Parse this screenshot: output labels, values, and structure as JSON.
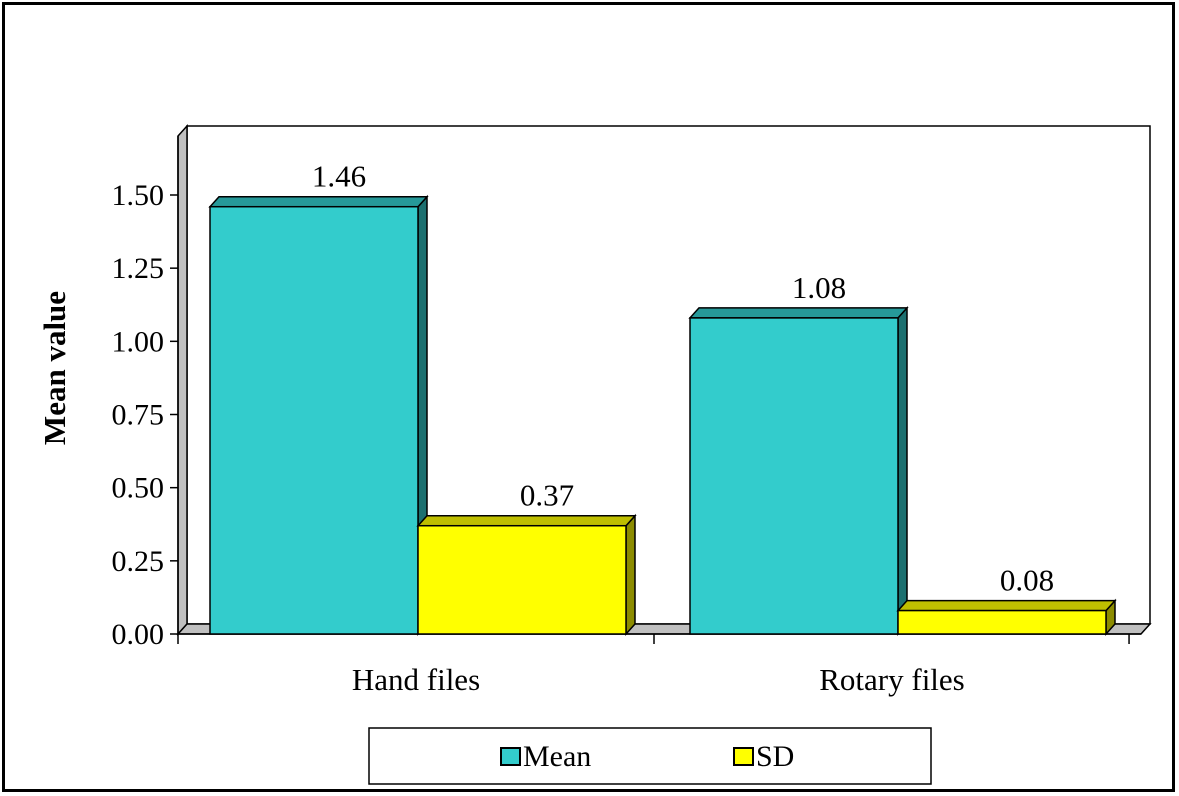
{
  "chart_data": {
    "type": "bar",
    "categories": [
      "Hand files",
      "Rotary files"
    ],
    "series": [
      {
        "name": "Mean",
        "values": [
          1.46,
          1.08
        ],
        "color": "#33CCCC"
      },
      {
        "name": "SD",
        "values": [
          0.37,
          0.08
        ],
        "color": "#FFFF00"
      }
    ],
    "value_labels": [
      [
        "1.46",
        "1.08"
      ],
      [
        "0.37",
        "0.08"
      ]
    ],
    "title": "",
    "xlabel": "",
    "ylabel": "Mean value",
    "ylim": [
      0,
      1.5
    ],
    "yticks": [
      0,
      0.25,
      0.5,
      0.75,
      1.0,
      1.25,
      1.5
    ],
    "ytick_labels": [
      "0.00",
      "0.25",
      "0.50",
      "0.75",
      "1.00",
      "1.25",
      "1.50"
    ],
    "grid": false,
    "style": "3d",
    "legend_position": "bottom"
  }
}
